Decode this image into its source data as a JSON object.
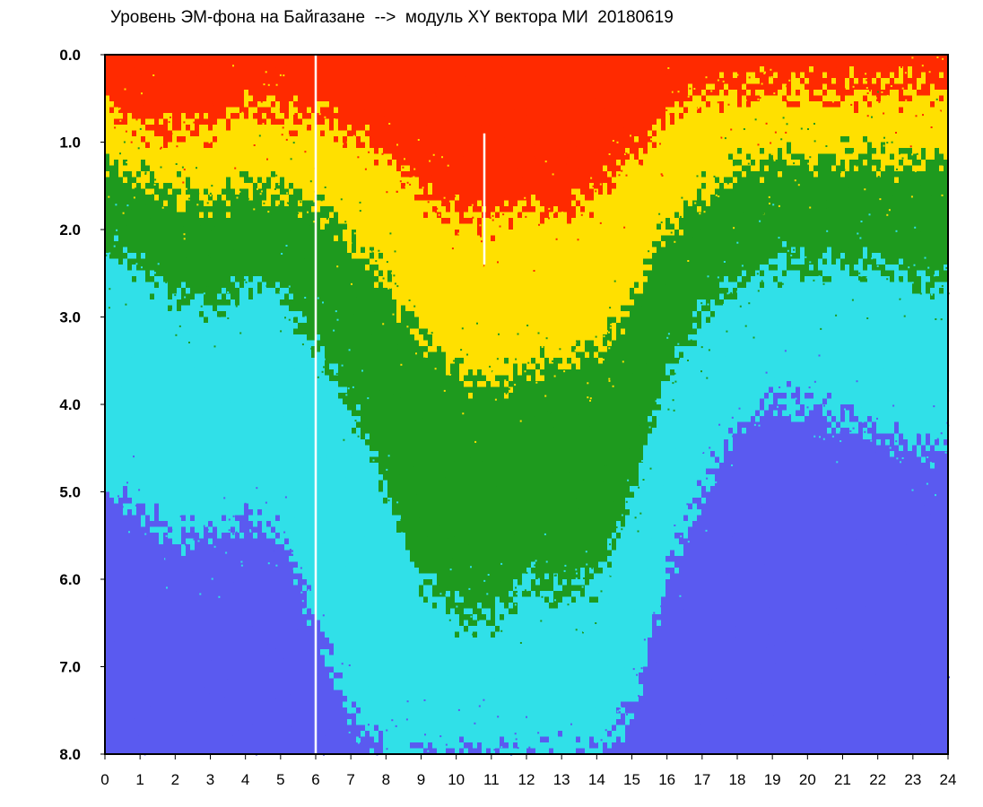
{
  "chart_data": {
    "type": "heatmap",
    "title": "Уровень ЭМ-фона на Байгазане  -->  модуль XY вектора МИ  20180619",
    "xlabel": "",
    "ylabel": "",
    "xlim": [
      0,
      24
    ],
    "ylim": [
      0.0,
      8.0
    ],
    "y_inverted": true,
    "x_ticks": [
      "0",
      "1",
      "2",
      "3",
      "4",
      "5",
      "6",
      "7",
      "8",
      "9",
      "10",
      "11",
      "12",
      "13",
      "14",
      "15",
      "16",
      "17",
      "18",
      "19",
      "20",
      "21",
      "22",
      "23",
      "24"
    ],
    "y_ticks": [
      "0.0",
      "1.0",
      "2.0",
      "3.0",
      "4.0",
      "5.0",
      "6.0",
      "7.0",
      "8.0"
    ],
    "grid": false,
    "color_scale": [
      "#FF2A00",
      "#FFE000",
      "#1E9A1E",
      "#30E0E8",
      "#5A5AF0"
    ],
    "gaps_at_hours": [
      6.0,
      10.8
    ],
    "boundaries": {
      "hours": [
        0,
        1,
        2,
        3,
        4,
        5,
        6,
        7,
        8,
        9,
        10,
        11,
        12,
        13,
        14,
        15,
        16,
        17,
        18,
        19,
        20,
        21,
        22,
        23,
        24
      ],
      "red_to_yellow": [
        0.6,
        0.8,
        0.9,
        0.9,
        0.6,
        0.7,
        0.7,
        0.9,
        1.2,
        1.6,
        1.8,
        1.9,
        1.7,
        1.8,
        1.6,
        1.2,
        0.7,
        0.5,
        0.4,
        0.4,
        0.4,
        0.4,
        0.4,
        0.4,
        0.4
      ],
      "yellow_to_green": [
        1.2,
        1.4,
        1.6,
        1.7,
        1.5,
        1.5,
        1.7,
        2.1,
        2.6,
        3.2,
        3.6,
        3.8,
        3.6,
        3.5,
        3.4,
        2.8,
        2.0,
        1.6,
        1.3,
        1.2,
        1.2,
        1.2,
        1.2,
        1.2,
        1.2
      ],
      "green_to_cyan": [
        2.2,
        2.4,
        2.8,
        2.9,
        2.6,
        2.7,
        3.3,
        4.0,
        5.0,
        6.0,
        6.4,
        6.5,
        6.0,
        6.2,
        6.0,
        5.0,
        3.6,
        3.0,
        2.6,
        2.4,
        2.4,
        2.4,
        2.4,
        2.6,
        2.6
      ],
      "cyan_to_blue": [
        5.0,
        5.2,
        5.5,
        5.5,
        5.3,
        5.5,
        6.5,
        7.5,
        8.0,
        8.0,
        8.0,
        8.0,
        8.0,
        8.0,
        8.0,
        7.5,
        6.0,
        5.0,
        4.2,
        4.0,
        4.0,
        4.2,
        4.3,
        4.5,
        4.5
      ]
    }
  }
}
